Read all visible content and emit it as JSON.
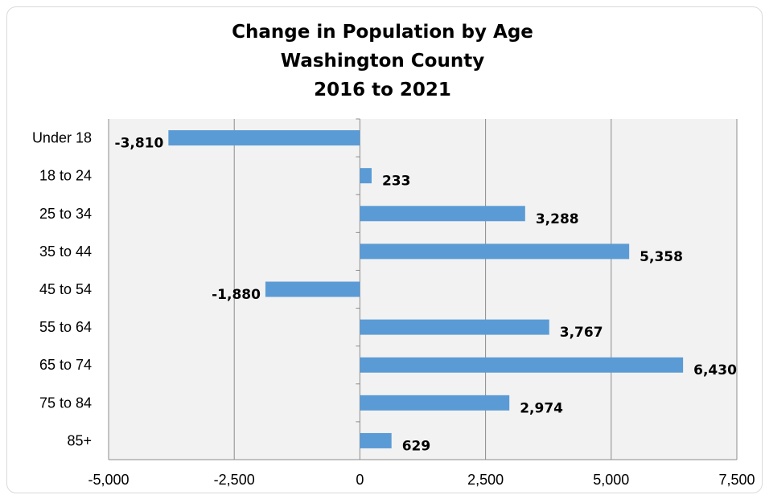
{
  "chart_data": {
    "type": "bar",
    "orientation": "horizontal",
    "title_lines": [
      "Change in Population by Age",
      "Washington County",
      "2016 to 2021"
    ],
    "categories": [
      "Under 18",
      "18 to 24",
      "25 to 34",
      "35 to 44",
      "45 to 54",
      "55 to 64",
      "65 to 74",
      "75 to 84",
      "85+"
    ],
    "values": [
      -3810,
      233,
      3288,
      5358,
      -1880,
      3767,
      6430,
      2974,
      629
    ],
    "data_labels": [
      "-3,810",
      "233",
      "3,288",
      "5,358",
      "-1,880",
      "3,767",
      "6,430",
      "2,974",
      "629"
    ],
    "xlim": [
      -5000,
      7500
    ],
    "x_ticks": [
      -5000,
      -2500,
      0,
      2500,
      5000,
      7500
    ],
    "x_tick_labels": [
      "-5,000",
      "-2,500",
      "0",
      "2,500",
      "5,000",
      "7,500"
    ],
    "grid": "vertical",
    "legend": "none",
    "xlabel": "",
    "ylabel": "",
    "colors": {
      "bar": "#5b9bd5",
      "plot_background": "#f2f2f2",
      "gridline": "#8c8c8c",
      "axis": "#8c8c8c",
      "text": "#000000"
    }
  }
}
